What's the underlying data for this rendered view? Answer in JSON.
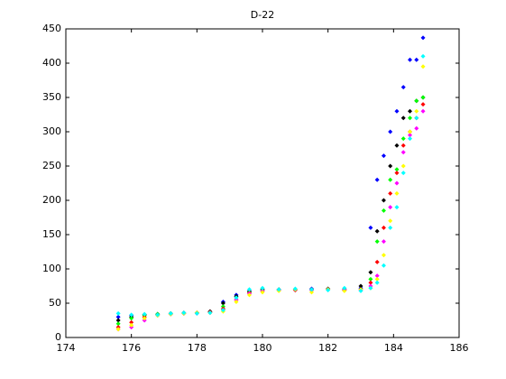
{
  "chart_data": {
    "type": "scatter",
    "title": "D-22",
    "x": [
      175.6,
      176.0,
      176.4,
      176.8,
      177.2,
      177.6,
      178.0,
      178.4,
      178.8,
      179.2,
      179.6,
      180.0,
      180.5,
      181.0,
      181.5,
      182.0,
      182.5,
      183.0,
      183.3,
      183.5,
      183.7,
      183.9,
      184.1,
      184.3,
      184.5,
      184.7,
      184.9
    ],
    "series": [
      {
        "color": "#0000ff",
        "values": [
          30,
          32,
          33,
          34,
          35,
          35,
          36,
          37,
          52,
          62,
          68,
          70,
          70,
          69,
          71,
          70,
          69,
          72,
          160,
          230,
          265,
          300,
          330,
          365,
          405,
          405,
          437
        ]
      },
      {
        "color": "#000000",
        "values": [
          25,
          30,
          33,
          34,
          35,
          36,
          36,
          38,
          50,
          60,
          67,
          70,
          69,
          70,
          70,
          71,
          70,
          75,
          95,
          155,
          200,
          250,
          280,
          320,
          330,
          345,
          350
        ]
      },
      {
        "color": "#00ff00",
        "values": [
          20,
          28,
          32,
          34,
          35,
          35,
          36,
          36,
          45,
          58,
          66,
          69,
          70,
          70,
          69,
          70,
          71,
          70,
          85,
          140,
          185,
          230,
          245,
          290,
          320,
          345,
          350
        ]
      },
      {
        "color": "#ff0000",
        "values": [
          15,
          22,
          30,
          33,
          34,
          35,
          36,
          37,
          42,
          55,
          65,
          68,
          70,
          69,
          70,
          70,
          69,
          70,
          80,
          110,
          160,
          210,
          240,
          280,
          300,
          320,
          340
        ]
      },
      {
        "color": "#ff00ff",
        "values": [
          12,
          15,
          25,
          32,
          34,
          35,
          35,
          36,
          40,
          55,
          64,
          68,
          69,
          70,
          69,
          70,
          70,
          69,
          75,
          90,
          140,
          190,
          225,
          270,
          295,
          305,
          330
        ]
      },
      {
        "color": "#ffff00",
        "values": [
          12,
          18,
          28,
          32,
          34,
          35,
          36,
          36,
          38,
          52,
          62,
          66,
          68,
          70,
          66,
          70,
          68,
          70,
          72,
          85,
          120,
          170,
          210,
          250,
          300,
          330,
          395
        ]
      },
      {
        "color": "#00ffff",
        "values": [
          35,
          33,
          34,
          33,
          35,
          36,
          35,
          36,
          40,
          58,
          70,
          72,
          70,
          71,
          70,
          69,
          72,
          68,
          72,
          80,
          105,
          160,
          190,
          240,
          290,
          320,
          410
        ]
      }
    ],
    "xlim": [
      174,
      186
    ],
    "xticks": [
      174,
      176,
      178,
      180,
      182,
      184,
      186
    ],
    "ylim": [
      0,
      450
    ],
    "yticks": [
      0,
      50,
      100,
      150,
      200,
      250,
      300,
      350,
      400,
      450
    ]
  }
}
